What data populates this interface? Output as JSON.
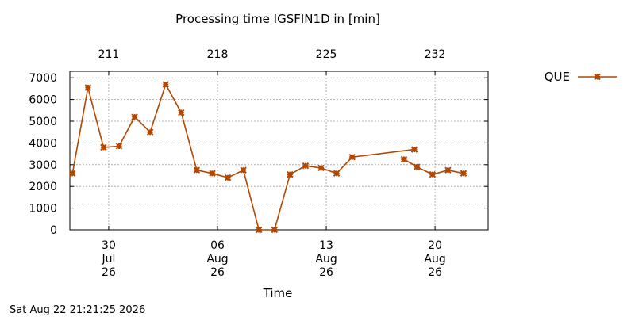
{
  "chart_data": {
    "type": "line",
    "title": "Processing time IGSFIN1D in [min]",
    "xlabel": "Time",
    "ylabel": "",
    "ylim": [
      0,
      7300
    ],
    "xlim": [
      "2026-07-27T12:00",
      "2026-08-23T10:00"
    ],
    "grid": true,
    "legend_position": "top-right outside",
    "y_ticks": [
      0,
      1000,
      2000,
      3000,
      4000,
      5000,
      6000,
      7000
    ],
    "x_ticks": [
      {
        "date": "2026-07-30",
        "day": "30",
        "month": "Jul",
        "year": "26"
      },
      {
        "date": "2026-08-06",
        "day": "06",
        "month": "Aug",
        "year": "26"
      },
      {
        "date": "2026-08-13",
        "day": "13",
        "month": "Aug",
        "year": "26"
      },
      {
        "date": "2026-08-20",
        "day": "20",
        "month": "Aug",
        "year": "26"
      }
    ],
    "top_ticks": [
      {
        "date": "2026-07-30",
        "label": "211"
      },
      {
        "date": "2026-08-06",
        "label": "218"
      },
      {
        "date": "2026-08-13",
        "label": "225"
      },
      {
        "date": "2026-08-20",
        "label": "232"
      }
    ],
    "series": [
      {
        "name": "QUE",
        "color": "#b34700",
        "segments": [
          [
            {
              "x": "2026-07-27T16:00",
              "y": 2600
            },
            {
              "x": "2026-07-28T16:00",
              "y": 6550
            },
            {
              "x": "2026-07-29T16:00",
              "y": 3800
            },
            {
              "x": "2026-07-30T16:00",
              "y": 3850
            },
            {
              "x": "2026-07-31T16:00",
              "y": 5200
            },
            {
              "x": "2026-08-01T16:00",
              "y": 4500
            },
            {
              "x": "2026-08-02T16:00",
              "y": 6700
            },
            {
              "x": "2026-08-03T16:00",
              "y": 5400
            },
            {
              "x": "2026-08-04T16:00",
              "y": 2750
            },
            {
              "x": "2026-08-05T16:00",
              "y": 2600
            },
            {
              "x": "2026-08-06T16:00",
              "y": 2400
            },
            {
              "x": "2026-08-07T16:00",
              "y": 2750
            },
            {
              "x": "2026-08-08T16:00",
              "y": 0
            },
            {
              "x": "2026-08-09T16:00",
              "y": 0
            },
            {
              "x": "2026-08-10T16:00",
              "y": 2550
            },
            {
              "x": "2026-08-11T16:00",
              "y": 2950
            },
            {
              "x": "2026-08-12T16:00",
              "y": 2850
            },
            {
              "x": "2026-08-13T16:00",
              "y": 2600
            },
            {
              "x": "2026-08-14T16:00",
              "y": 3350
            },
            {
              "x": "2026-08-18T16:00",
              "y": 3700
            }
          ],
          [
            {
              "x": "2026-08-18T00:00",
              "y": 3250
            },
            {
              "x": "2026-08-18T20:00",
              "y": 2900
            },
            {
              "x": "2026-08-19T20:00",
              "y": 2550
            },
            {
              "x": "2026-08-20T20:00",
              "y": 2750
            },
            {
              "x": "2026-08-21T20:00",
              "y": 2600
            }
          ]
        ]
      }
    ]
  },
  "legend": {
    "label": "QUE"
  },
  "footer": {
    "timestamp": "Sat Aug 22 21:21:25 2026"
  }
}
